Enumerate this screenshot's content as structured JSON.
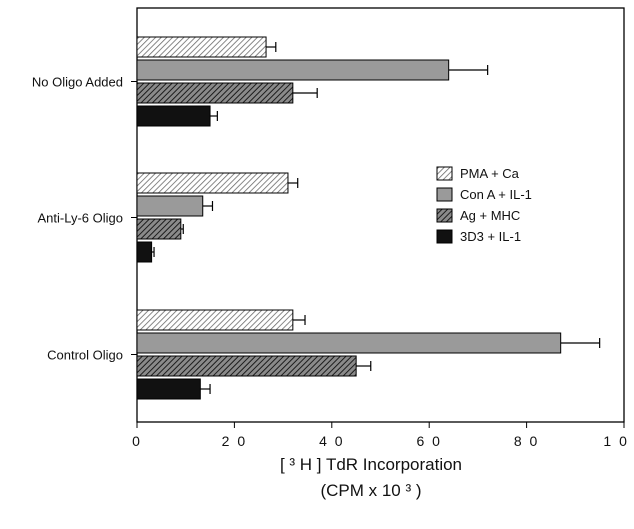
{
  "chart_data": {
    "type": "bar",
    "orientation": "horizontal",
    "categories": [
      "No Oligo Added",
      "Anti-Ly-6 Oligo",
      "Control Oligo"
    ],
    "series": [
      {
        "name": "PMA + Ca",
        "pattern": "light-hatch",
        "values": [
          26.5,
          31,
          32
        ],
        "errors": [
          2,
          2,
          2.5
        ]
      },
      {
        "name": "Con A + IL-1",
        "pattern": "gray",
        "values": [
          64,
          13.5,
          87
        ],
        "errors": [
          8,
          2,
          8
        ]
      },
      {
        "name": "Ag + MHC",
        "pattern": "dark-hatch",
        "values": [
          32,
          9,
          45
        ],
        "errors": [
          5,
          0.5,
          3
        ]
      },
      {
        "name": "3D3 + IL-1",
        "pattern": "black",
        "values": [
          15,
          3,
          13
        ],
        "errors": [
          1.5,
          0.5,
          2
        ]
      }
    ],
    "x_ticks": [
      "0",
      "2 0",
      "4 0",
      "6 0",
      "8 0",
      "1 0 0"
    ],
    "xlim": [
      0,
      100
    ],
    "xlabel_line1": "[ ³ H ] TdR Incorporation",
    "xlabel_line2": "(CPM x 10 ³ )",
    "legend_position": "right-middle",
    "grid": false
  }
}
